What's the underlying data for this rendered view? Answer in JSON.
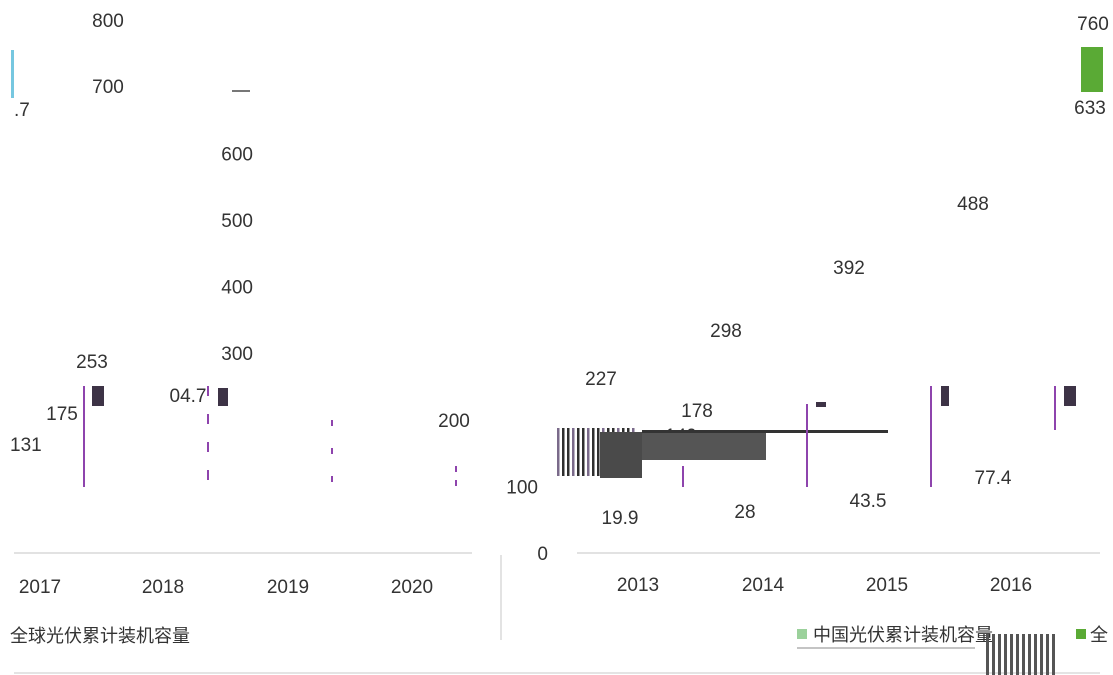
{
  "chart_data": [
    {
      "type": "bar",
      "panel": "left",
      "title": "",
      "xlabel": "",
      "ylabel": "",
      "categories": [
        "2017",
        "2018",
        "2019",
        "2020"
      ],
      "ytick_labels": [
        "800",
        "700"
      ],
      "data_labels": [
        ".7",
        "253",
        "175",
        "131",
        "04.7",
        "200"
      ],
      "legend": [
        {
          "label": "全球光伏累计装机容量",
          "color": "#5b9bd5"
        }
      ]
    },
    {
      "type": "bar",
      "panel": "right",
      "title": "",
      "xlabel": "",
      "ylabel": "",
      "categories": [
        "2013",
        "2014",
        "2015",
        "2016"
      ],
      "ylim": [
        0,
        800
      ],
      "yticks": [
        0,
        100,
        300,
        400,
        500,
        600
      ],
      "series": [
        {
          "name": "中国光伏累计装机容量",
          "color": "#9bd19b",
          "values": [
            19.9,
            28,
            43.5,
            77.4
          ]
        },
        {
          "name": "全",
          "color": "#5aaa35",
          "values": [
            null,
            null,
            null,
            null
          ]
        }
      ],
      "upper_labels": [
        "227",
        "298",
        "392",
        "488"
      ],
      "mid_labels": [
        "178",
        "140"
      ],
      "edge_labels": [
        "760",
        "633"
      ]
    }
  ]
}
